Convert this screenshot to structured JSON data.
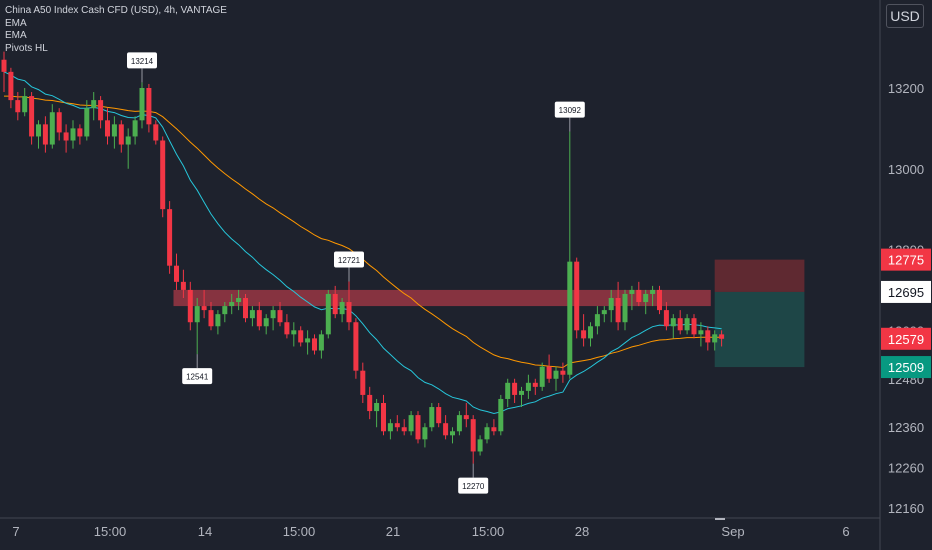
{
  "legend": {
    "title": "China A50 Index Cash CFD (USD), 4h, VANTAGE",
    "indicators": [
      "EMA",
      "EMA",
      "Pivots HL"
    ]
  },
  "currency": "USD",
  "colors": {
    "background": "#1e222d",
    "up": "#26a69a",
    "up_candle": "#4caf50",
    "down": "#f23645",
    "ema_fast": "#26c6da",
    "ema_slow": "#ff9800",
    "resistance_zone": "#b23a48",
    "stop_zone": "#6b2a33",
    "target_zone": "#1e4a4a",
    "axis_text": "#b2b5be"
  },
  "chart_data": {
    "type": "candlestick",
    "timeframe": "4h",
    "y_axis": {
      "ticks": [
        13200,
        13000,
        12800,
        12600,
        12480,
        12360,
        12260,
        12160
      ],
      "range": [
        12140,
        13320
      ]
    },
    "x_axis": {
      "ticks": [
        "7",
        "15:00",
        "14",
        "15:00",
        "21",
        "15:00",
        "28",
        "Sep",
        "6"
      ]
    },
    "price_labels": [
      {
        "value": 12775,
        "text": "12775",
        "style": "stop"
      },
      {
        "value": 12695,
        "text": "12695",
        "style": "entry"
      },
      {
        "value": 12579,
        "text": "12579",
        "style": "last"
      },
      {
        "value": 12509,
        "text": "12509",
        "style": "target"
      }
    ],
    "pivots": [
      {
        "index": 20,
        "value": 13214,
        "label": "13214",
        "type": "high"
      },
      {
        "index": 28,
        "value": 12541,
        "label": "12541",
        "type": "low"
      },
      {
        "index": 50,
        "value": 12721,
        "label": "12721",
        "type": "high"
      },
      {
        "index": 68,
        "value": 12270,
        "label": "12270",
        "type": "low"
      },
      {
        "index": 82,
        "value": 13092,
        "label": "13092",
        "type": "high"
      }
    ],
    "zone": {
      "from_index": 25,
      "to_index": 102,
      "low": 12660,
      "high": 12700
    },
    "position": {
      "from_index": 103,
      "to_index": 116,
      "entry": 12695,
      "stop": 12775,
      "target": 12509
    },
    "candles": [
      [
        13270,
        13290,
        13190,
        13240
      ],
      [
        13240,
        13250,
        13150,
        13170
      ],
      [
        13170,
        13190,
        13120,
        13140
      ],
      [
        13140,
        13200,
        13130,
        13180
      ],
      [
        13180,
        13190,
        13060,
        13080
      ],
      [
        13080,
        13120,
        13050,
        13110
      ],
      [
        13110,
        13130,
        13040,
        13060
      ],
      [
        13060,
        13160,
        13050,
        13140
      ],
      [
        13140,
        13150,
        13070,
        13090
      ],
      [
        13090,
        13110,
        13040,
        13070
      ],
      [
        13070,
        13120,
        13050,
        13100
      ],
      [
        13100,
        13110,
        13060,
        13080
      ],
      [
        13080,
        13170,
        13070,
        13150
      ],
      [
        13150,
        13190,
        13120,
        13170
      ],
      [
        13170,
        13180,
        13100,
        13120
      ],
      [
        13120,
        13150,
        13060,
        13080
      ],
      [
        13080,
        13130,
        13050,
        13110
      ],
      [
        13110,
        13120,
        13040,
        13060
      ],
      [
        13060,
        13100,
        13000,
        13080
      ],
      [
        13080,
        13130,
        13060,
        13120
      ],
      [
        13120,
        13214,
        13100,
        13200
      ],
      [
        13200,
        13210,
        13090,
        13110
      ],
      [
        13110,
        13120,
        13060,
        13070
      ],
      [
        13070,
        13080,
        12880,
        12900
      ],
      [
        12900,
        12920,
        12740,
        12760
      ],
      [
        12760,
        12790,
        12700,
        12720
      ],
      [
        12720,
        12750,
        12680,
        12700
      ],
      [
        12700,
        12720,
        12600,
        12620
      ],
      [
        12620,
        12680,
        12541,
        12660
      ],
      [
        12660,
        12700,
        12630,
        12650
      ],
      [
        12650,
        12670,
        12600,
        12610
      ],
      [
        12610,
        12650,
        12590,
        12640
      ],
      [
        12640,
        12670,
        12620,
        12660
      ],
      [
        12660,
        12690,
        12640,
        12670
      ],
      [
        12670,
        12700,
        12650,
        12680
      ],
      [
        12680,
        12690,
        12620,
        12630
      ],
      [
        12630,
        12660,
        12610,
        12650
      ],
      [
        12650,
        12670,
        12600,
        12610
      ],
      [
        12610,
        12640,
        12590,
        12630
      ],
      [
        12630,
        12660,
        12600,
        12650
      ],
      [
        12650,
        12670,
        12610,
        12620
      ],
      [
        12620,
        12640,
        12580,
        12590
      ],
      [
        12590,
        12620,
        12560,
        12600
      ],
      [
        12600,
        12610,
        12560,
        12570
      ],
      [
        12570,
        12600,
        12540,
        12580
      ],
      [
        12580,
        12590,
        12540,
        12550
      ],
      [
        12550,
        12600,
        12530,
        12590
      ],
      [
        12590,
        12700,
        12580,
        12690
      ],
      [
        12690,
        12710,
        12630,
        12640
      ],
      [
        12640,
        12680,
        12620,
        12670
      ],
      [
        12670,
        12721,
        12600,
        12620
      ],
      [
        12620,
        12630,
        12480,
        12500
      ],
      [
        12500,
        12520,
        12420,
        12440
      ],
      [
        12440,
        12460,
        12380,
        12400
      ],
      [
        12400,
        12430,
        12360,
        12420
      ],
      [
        12420,
        12440,
        12340,
        12350
      ],
      [
        12350,
        12380,
        12330,
        12370
      ],
      [
        12370,
        12390,
        12350,
        12360
      ],
      [
        12360,
        12380,
        12340,
        12350
      ],
      [
        12350,
        12400,
        12340,
        12390
      ],
      [
        12390,
        12400,
        12320,
        12330
      ],
      [
        12330,
        12370,
        12310,
        12360
      ],
      [
        12360,
        12420,
        12350,
        12410
      ],
      [
        12410,
        12420,
        12360,
        12370
      ],
      [
        12370,
        12390,
        12330,
        12340
      ],
      [
        12340,
        12360,
        12320,
        12350
      ],
      [
        12350,
        12400,
        12340,
        12390
      ],
      [
        12390,
        12420,
        12360,
        12380
      ],
      [
        12380,
        12390,
        12270,
        12300
      ],
      [
        12300,
        12340,
        12290,
        12330
      ],
      [
        12330,
        12370,
        12320,
        12360
      ],
      [
        12360,
        12380,
        12340,
        12350
      ],
      [
        12350,
        12440,
        12340,
        12430
      ],
      [
        12430,
        12480,
        12410,
        12470
      ],
      [
        12470,
        12480,
        12420,
        12440
      ],
      [
        12440,
        12460,
        12410,
        12450
      ],
      [
        12450,
        12490,
        12430,
        12470
      ],
      [
        12470,
        12480,
        12440,
        12460
      ],
      [
        12460,
        12520,
        12450,
        12510
      ],
      [
        12510,
        12540,
        12470,
        12480
      ],
      [
        12480,
        12510,
        12450,
        12500
      ],
      [
        12500,
        12520,
        12470,
        12490
      ],
      [
        12490,
        13092,
        12480,
        12770
      ],
      [
        12770,
        12780,
        12580,
        12600
      ],
      [
        12600,
        12640,
        12560,
        12580
      ],
      [
        12580,
        12620,
        12560,
        12610
      ],
      [
        12610,
        12660,
        12590,
        12640
      ],
      [
        12640,
        12660,
        12620,
        12650
      ],
      [
        12650,
        12700,
        12620,
        12680
      ],
      [
        12680,
        12720,
        12600,
        12620
      ],
      [
        12620,
        12700,
        12600,
        12690
      ],
      [
        12690,
        12710,
        12650,
        12700
      ],
      [
        12700,
        12720,
        12660,
        12670
      ],
      [
        12670,
        12700,
        12640,
        12690
      ],
      [
        12690,
        12710,
        12660,
        12700
      ],
      [
        12700,
        12710,
        12640,
        12650
      ],
      [
        12650,
        12670,
        12600,
        12610
      ],
      [
        12610,
        12640,
        12580,
        12630
      ],
      [
        12630,
        12650,
        12590,
        12600
      ],
      [
        12600,
        12640,
        12590,
        12630
      ],
      [
        12630,
        12640,
        12580,
        12590
      ],
      [
        12590,
        12620,
        12560,
        12600
      ],
      [
        12600,
        12610,
        12550,
        12570
      ],
      [
        12570,
        12600,
        12550,
        12590
      ],
      [
        12590,
        12600,
        12560,
        12579
      ]
    ],
    "ema_fast": [
      13240,
      13232,
      13222,
      13218,
      13203,
      13196,
      13185,
      13181,
      13172,
      13162,
      13157,
      13150,
      13150,
      13152,
      13149,
      13142,
      13139,
      13132,
      13127,
      13126,
      13134,
      13132,
      13126,
      13103,
      13069,
      13036,
      13007,
      12972,
      12947,
      12917,
      12888,
      12864,
      12843,
      12826,
      12812,
      12795,
      12781,
      12764,
      12750,
      12738,
      12724,
      12708,
      12696,
      12682,
      12670,
      12658,
      12651,
      12655,
      12653,
      12654,
      12651,
      12636,
      12616,
      12594,
      12577,
      12556,
      12540,
      12524,
      12510,
      12500,
      12483,
      12471,
      12465,
      12455,
      12443,
      12434,
      12430,
      12425,
      12410,
      12403,
      12399,
      12394,
      12398,
      12406,
      12409,
      12413,
      12419,
      12423,
      12432,
      12437,
      12443,
      12447,
      12477,
      12489,
      12498,
      12509,
      12521,
      12532,
      12547,
      12556,
      12569,
      12582,
      12590,
      12600,
      12609,
      12613,
      12612,
      12614,
      12613,
      12615,
      12614,
      12612,
      12608,
      12606,
      12604
    ],
    "ema_slow": [
      13180,
      13180,
      13178,
      13178,
      13175,
      13173,
      13170,
      13169,
      13166,
      13163,
      13161,
      13158,
      13157,
      13157,
      13155,
      13152,
      13150,
      13147,
      13144,
      13142,
      13143,
      13142,
      13139,
      13129,
      13114,
      13099,
      13083,
      13066,
      13051,
      13034,
      13017,
      13002,
      12988,
      12975,
      12963,
      12950,
      12938,
      12925,
      12913,
      12903,
      12891,
      12880,
      12869,
      12857,
      12847,
      12836,
      12827,
      12823,
      12816,
      12810,
      12802,
      12790,
      12776,
      12761,
      12748,
      12732,
      12718,
      12704,
      12691,
      12680,
      12665,
      12652,
      12641,
      12629,
      12616,
      12604,
      12594,
      12585,
      12570,
      12559,
      12549,
      12539,
      12533,
      12530,
      12525,
      12521,
      12518,
      12514,
      12513,
      12511,
      12510,
      12508,
      12519,
      12522,
      12525,
      12528,
      12533,
      12537,
      12543,
      12547,
      12553,
      12559,
      12563,
      12568,
      12573,
      12576,
      12577,
      12579,
      12580,
      12582,
      12582,
      12583,
      12583,
      12583,
      12583
    ]
  }
}
